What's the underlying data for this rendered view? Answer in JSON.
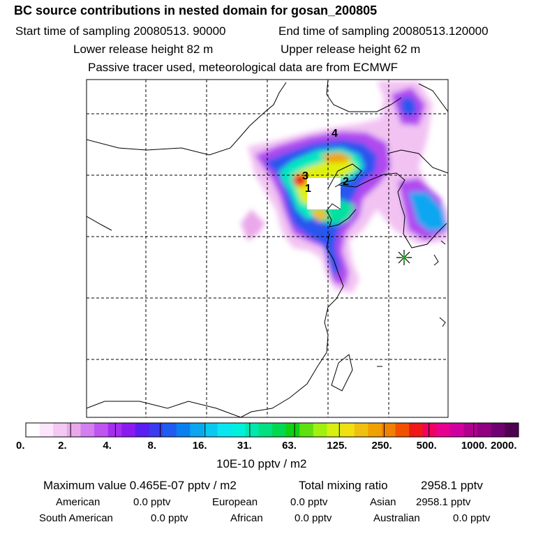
{
  "header": {
    "title": "BC  source contributions in nested domain for gosan_200805",
    "start_label": "Start time of sampling 20080513. 90000",
    "end_label": "End time of sampling 20080513.120000",
    "lower_height": "Lower release height   82 m",
    "upper_height": "Upper release height   62 m",
    "tracer_note": "Passive tracer used, meteorological data are from ECMWF"
  },
  "map": {
    "source_markers": [
      "1",
      "2",
      "3",
      "4"
    ],
    "receptor_marker": "star"
  },
  "colorbar": {
    "tick_labels": [
      "0.",
      "2.",
      "4.",
      "8.",
      "16.",
      "31.",
      "63.",
      "125.",
      "250.",
      "500.",
      "1000.",
      "2000."
    ],
    "unit_label": "10E-10 pptv / m2",
    "colors": [
      "#ffffff",
      "#fbe6fb",
      "#f3c8f3",
      "#eaa8ea",
      "#d27ff0",
      "#bf55f0",
      "#a62ef0",
      "#8a1cf0",
      "#5a1ef0",
      "#3a3cf0",
      "#1f5cf0",
      "#0a80f0",
      "#0aa6f0",
      "#0ac8f0",
      "#0ae6f0",
      "#00f0e0",
      "#00e8b0",
      "#00e080",
      "#00d850",
      "#10d010",
      "#60e010",
      "#a0f010",
      "#d8f010",
      "#f0e010",
      "#f0c010",
      "#f0a000",
      "#f08000",
      "#f05000",
      "#f01818",
      "#f00060",
      "#e80090",
      "#d000a0",
      "#b00090",
      "#900080",
      "#700070",
      "#500050"
    ]
  },
  "stats": {
    "max_label": "Maximum value  0.465E-07 pptv / m2",
    "total_label": "Total mixing ratio",
    "total_value": "2958.1 pptv",
    "rows": [
      [
        {
          "name": "American",
          "value": "0.0 pptv"
        },
        {
          "name": "European",
          "value": "0.0 pptv"
        },
        {
          "name": "Asian",
          "value": "2958.1 pptv"
        }
      ],
      [
        {
          "name": "South American",
          "value": "0.0 pptv"
        },
        {
          "name": "African",
          "value": "0.0 pptv"
        },
        {
          "name": "Australian",
          "value": "0.0 pptv"
        }
      ]
    ]
  }
}
